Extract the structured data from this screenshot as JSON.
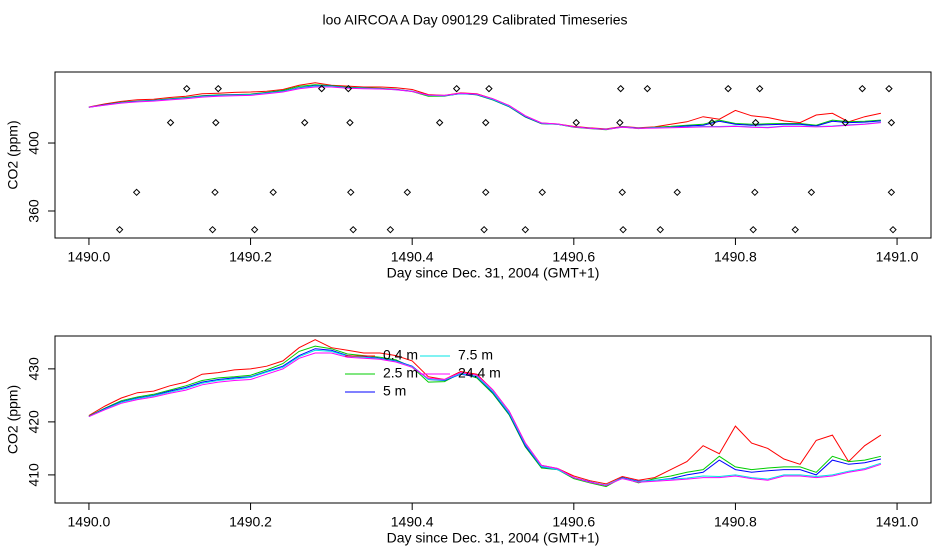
{
  "chart_data": [
    {
      "type": "scatter",
      "title": "loo AIRCOA A  Day 090129  Calibrated Timeseries",
      "xlabel": "Day since Dec. 31, 2004 (GMT+1)",
      "ylabel": "CO2 (ppm)",
      "xlim": [
        1489.958,
        1491.042
      ],
      "ylim": [
        344.1,
        441.8
      ],
      "xticks": [
        {
          "value": 1490,
          "label": "1490.0"
        },
        1490.2,
        1490.4,
        1490.6,
        1490.8,
        {
          "value": 1491,
          "label": "1491.0"
        }
      ],
      "yticks": [
        360,
        400
      ],
      "color": "#000000",
      "x": [
        1490.121,
        1490.16,
        1490.288,
        1490.321,
        1490.455,
        1490.495,
        1490.658,
        1490.691,
        1490.791,
        1490.83,
        1490.957,
        1490.99,
        1490.101,
        1490.157,
        1490.267,
        1490.323,
        1490.434,
        1490.491,
        1490.603,
        1490.657,
        1490.771,
        1490.825,
        1490.936,
        1490.993,
        1490.059,
        1490.156,
        1490.228,
        1490.324,
        1490.394,
        1490.491,
        1490.561,
        1490.66,
        1490.728,
        1490.824,
        1490.894,
        1490.993,
        1490.038,
        1490.153,
        1490.205,
        1490.327,
        1490.373,
        1490.489,
        1490.54,
        1490.661,
        1490.707,
        1490.822,
        1490.874,
        1490.995
      ],
      "y": [
        432,
        432,
        432,
        432,
        432,
        432,
        432,
        432,
        432,
        432,
        432,
        432,
        412,
        412,
        412,
        412,
        412,
        412,
        412,
        412,
        412,
        412,
        412,
        412,
        371,
        371,
        371,
        371,
        371,
        371,
        371,
        371,
        371,
        371,
        371,
        371,
        349,
        349,
        349,
        349,
        349,
        349,
        349,
        349,
        349,
        349,
        349,
        349
      ]
    },
    {
      "type": "line",
      "xlabel": "Day since Dec. 31, 2004 (GMT+1)",
      "ylabel": "CO2 (ppm)",
      "xlim": [
        1489.958,
        1491.042
      ],
      "ylim": [
        404.7,
        436.2
      ],
      "xticks": [
        {
          "value": 1490,
          "label": "1490.0"
        },
        1490.2,
        1490.4,
        1490.6,
        1490.8,
        {
          "value": 1491,
          "label": "1491.0"
        }
      ],
      "yticks": [
        410,
        420,
        430
      ],
      "legend": "top",
      "x": [
        1490,
        1490.02,
        1490.04,
        1490.06,
        1490.08,
        1490.1,
        1490.12,
        1490.14,
        1490.16,
        1490.18,
        1490.2,
        1490.22,
        1490.24,
        1490.26,
        1490.28,
        1490.3,
        1490.32,
        1490.34,
        1490.36,
        1490.38,
        1490.4,
        1490.42,
        1490.44,
        1490.46,
        1490.48,
        1490.5,
        1490.52,
        1490.54,
        1490.56,
        1490.58,
        1490.6,
        1490.62,
        1490.64,
        1490.66,
        1490.68,
        1490.7,
        1490.72,
        1490.74,
        1490.76,
        1490.78,
        1490.8,
        1490.82,
        1490.84,
        1490.86,
        1490.88,
        1490.9,
        1490.92,
        1490.94,
        1490.96,
        1490.98
      ],
      "series": [
        {
          "name": "0.4 m",
          "color": "#ff0000",
          "values": [
            421.2,
            423.0,
            424.5,
            425.5,
            425.8,
            426.8,
            427.5,
            429.0,
            429.3,
            429.8,
            430.0,
            430.5,
            431.5,
            434.0,
            435.5,
            434.0,
            433.5,
            433.0,
            433.0,
            432.5,
            431.5,
            428.5,
            428.0,
            429.5,
            429.0,
            426.0,
            422.0,
            416.0,
            411.8,
            411.2,
            409.8,
            408.9,
            408.3,
            409.7,
            409.0,
            409.5,
            411.0,
            412.5,
            415.5,
            414.0,
            419.2,
            416.0,
            415.0,
            413.0,
            412.0,
            416.5,
            417.5,
            412.5,
            415.5,
            417.5
          ]
        },
        {
          "name": "2.5 m",
          "color": "#00cd00",
          "values": [
            421.1,
            422.6,
            424.0,
            424.7,
            425.2,
            426.0,
            426.8,
            427.8,
            428.3,
            428.5,
            428.8,
            429.8,
            431.0,
            433.3,
            434.3,
            433.8,
            432.8,
            432.5,
            432.2,
            431.7,
            430.3,
            427.5,
            427.6,
            429.2,
            428.3,
            425.3,
            421.3,
            415.3,
            411.3,
            411.0,
            409.3,
            408.5,
            407.8,
            409.5,
            408.5,
            409.3,
            409.8,
            410.5,
            411.0,
            413.5,
            411.5,
            411.0,
            411.3,
            411.5,
            411.5,
            410.5,
            413.5,
            412.5,
            412.8,
            413.5
          ]
        },
        {
          "name": "5 m",
          "color": "#0000ff",
          "values": [
            421.0,
            422.5,
            423.8,
            424.5,
            425.0,
            425.8,
            426.5,
            427.5,
            428.0,
            428.3,
            428.5,
            429.5,
            430.5,
            432.5,
            433.8,
            433.5,
            432.5,
            432.3,
            432.0,
            431.5,
            430.5,
            428.0,
            427.8,
            429.0,
            428.5,
            425.5,
            421.5,
            415.5,
            411.5,
            411.0,
            409.5,
            408.7,
            408.0,
            409.5,
            408.8,
            409.0,
            409.3,
            410.0,
            410.5,
            412.8,
            411.0,
            410.5,
            410.8,
            411.0,
            411.0,
            410.0,
            412.8,
            412.0,
            412.3,
            413.0
          ]
        },
        {
          "name": "7.5 m",
          "color": "#00e5e5",
          "values": [
            421.0,
            422.4,
            423.7,
            424.4,
            424.9,
            425.6,
            426.3,
            427.3,
            427.8,
            428.1,
            428.4,
            429.4,
            430.3,
            432.3,
            433.5,
            433.3,
            432.4,
            432.2,
            431.9,
            431.4,
            430.4,
            428.0,
            427.9,
            429.1,
            428.6,
            425.7,
            421.7,
            415.8,
            411.6,
            411.0,
            409.5,
            408.6,
            408.1,
            409.4,
            408.7,
            409.0,
            409.2,
            409.4,
            409.8,
            409.7,
            410.0,
            409.5,
            409.2,
            410.0,
            410.0,
            409.7,
            410.0,
            410.7,
            411.2,
            412.2
          ]
        },
        {
          "name": "24.4 m",
          "color": "#ff00ff",
          "values": [
            421.0,
            422.3,
            423.5,
            424.2,
            424.7,
            425.4,
            426.0,
            427.0,
            427.5,
            427.8,
            428.0,
            429.0,
            430.0,
            432.0,
            433.0,
            433.0,
            432.2,
            432.0,
            431.8,
            431.3,
            430.3,
            428.2,
            428.0,
            429.3,
            428.8,
            426.0,
            422.0,
            416.0,
            411.8,
            411.2,
            409.5,
            408.6,
            408.0,
            409.3,
            408.6,
            408.8,
            409.0,
            409.2,
            409.5,
            409.5,
            409.8,
            409.3,
            409.0,
            409.8,
            409.8,
            409.5,
            409.8,
            410.5,
            411.0,
            412.0
          ]
        }
      ]
    }
  ]
}
